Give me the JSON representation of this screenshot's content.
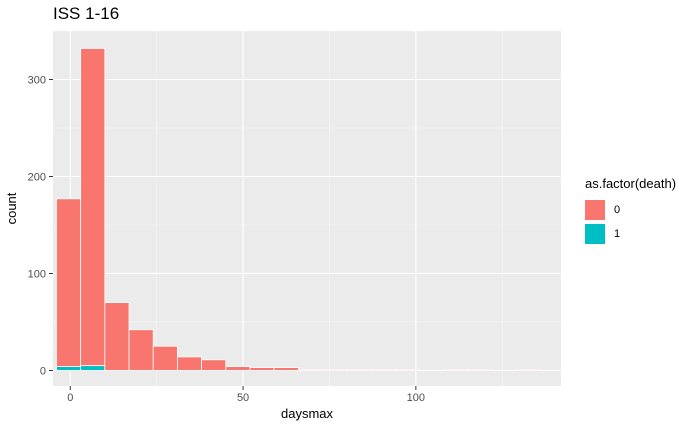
{
  "chart_data": {
    "type": "bar",
    "title": "ISS 1-16",
    "xlabel": "daysmax",
    "ylabel": "count",
    "xlim": [
      -5,
      142
    ],
    "ylim": [
      -16,
      350
    ],
    "xticks": [
      0,
      50,
      100
    ],
    "yticks": [
      0,
      100,
      200,
      300
    ],
    "binwidth": 7,
    "bin_starts": [
      -4,
      3,
      10,
      17,
      24,
      31,
      38,
      45,
      52,
      59,
      66,
      73,
      80,
      87,
      94,
      101,
      108,
      115,
      122,
      129
    ],
    "series": [
      {
        "name": "0",
        "color": "#F8766D",
        "values": [
          173,
          327,
          70,
          42,
          25,
          14,
          11,
          4,
          3,
          3,
          1,
          1,
          1,
          1,
          1,
          0,
          1,
          1,
          0,
          1
        ]
      },
      {
        "name": "1",
        "color": "#00BFC4",
        "values": [
          4,
          5,
          0,
          0,
          0,
          0,
          0,
          0,
          0,
          0,
          0,
          0,
          0,
          0,
          0,
          0,
          0,
          0,
          0,
          0
        ]
      }
    ],
    "stacked": true,
    "legend": {
      "title": "as.factor(death)",
      "position": "right"
    },
    "grid": true
  }
}
